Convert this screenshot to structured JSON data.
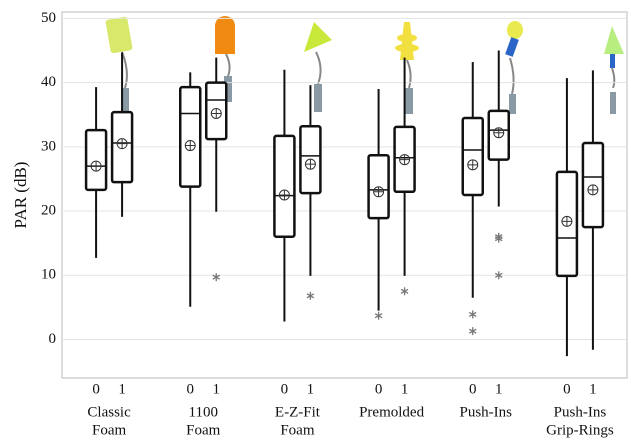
{
  "chart_data": {
    "type": "box",
    "y_label": "PAR (dB)",
    "ylim": [
      -6,
      51
    ],
    "yticks": [
      0,
      10,
      20,
      30,
      40,
      50
    ],
    "grid": true,
    "subcategories": [
      "0",
      "1"
    ],
    "groups": [
      {
        "label": [
          "Classic",
          "Foam"
        ],
        "boxes": [
          {
            "min": 12.7,
            "q1": 23.3,
            "median": 27,
            "q3": 32.6,
            "max": 39.3,
            "mean": 27,
            "outliers": []
          },
          {
            "min": 19.1,
            "q1": 24.5,
            "median": 30.6,
            "q3": 35.4,
            "max": 44.7,
            "mean": 30.5,
            "outliers": []
          }
        ]
      },
      {
        "label": [
          "1100",
          "Foam"
        ],
        "boxes": [
          {
            "min": 5.1,
            "q1": 23.8,
            "median": 35.2,
            "q3": 39.3,
            "max": 41.6,
            "mean": 30.2,
            "outliers": []
          },
          {
            "min": 19.9,
            "q1": 31.2,
            "median": 37.3,
            "q3": 40,
            "max": 43.9,
            "mean": 35.2,
            "outliers": [
              9.7
            ]
          }
        ]
      },
      {
        "label": [
          "E-Z-Fit",
          "Foam"
        ],
        "boxes": [
          {
            "min": 2.8,
            "q1": 16,
            "median": 22.4,
            "q3": 31.7,
            "max": 42,
            "mean": 22.5,
            "outliers": []
          },
          {
            "min": 9.9,
            "q1": 22.8,
            "median": 28.6,
            "q3": 33.2,
            "max": 39.6,
            "mean": 27.3,
            "outliers": [
              6.8
            ]
          }
        ]
      },
      {
        "label": [
          "Premolded"
        ],
        "boxes": [
          {
            "min": 4.5,
            "q1": 18.9,
            "median": 23.3,
            "q3": 28.7,
            "max": 39,
            "mean": 23,
            "outliers": [
              3.7
            ]
          },
          {
            "min": 9.9,
            "q1": 23,
            "median": 28.3,
            "q3": 33.1,
            "max": 43.9,
            "mean": 28,
            "outliers": [
              7.5
            ]
          }
        ]
      },
      {
        "label": [
          "Push-Ins"
        ],
        "boxes": [
          {
            "min": 6.5,
            "q1": 22.5,
            "median": 29.5,
            "q3": 34.5,
            "max": 43.2,
            "mean": 27.2,
            "outliers": [
              3.9,
              1.3
            ]
          },
          {
            "min": 20.7,
            "q1": 28,
            "median": 32.6,
            "q3": 35.6,
            "max": 45,
            "mean": 32.2,
            "outliers": [
              16,
              15.7,
              10
            ]
          }
        ]
      },
      {
        "label": [
          "Push-Ins",
          "Grip-Rings"
        ],
        "boxes": [
          {
            "min": -2.6,
            "q1": 9.9,
            "median": 15.8,
            "q3": 26.1,
            "max": 40.7,
            "mean": 18.4,
            "outliers": []
          },
          {
            "min": -1.6,
            "q1": 17.5,
            "median": 25.3,
            "q3": 30.6,
            "max": 41.9,
            "mean": 23.3,
            "outliers": []
          }
        ]
      }
    ]
  }
}
